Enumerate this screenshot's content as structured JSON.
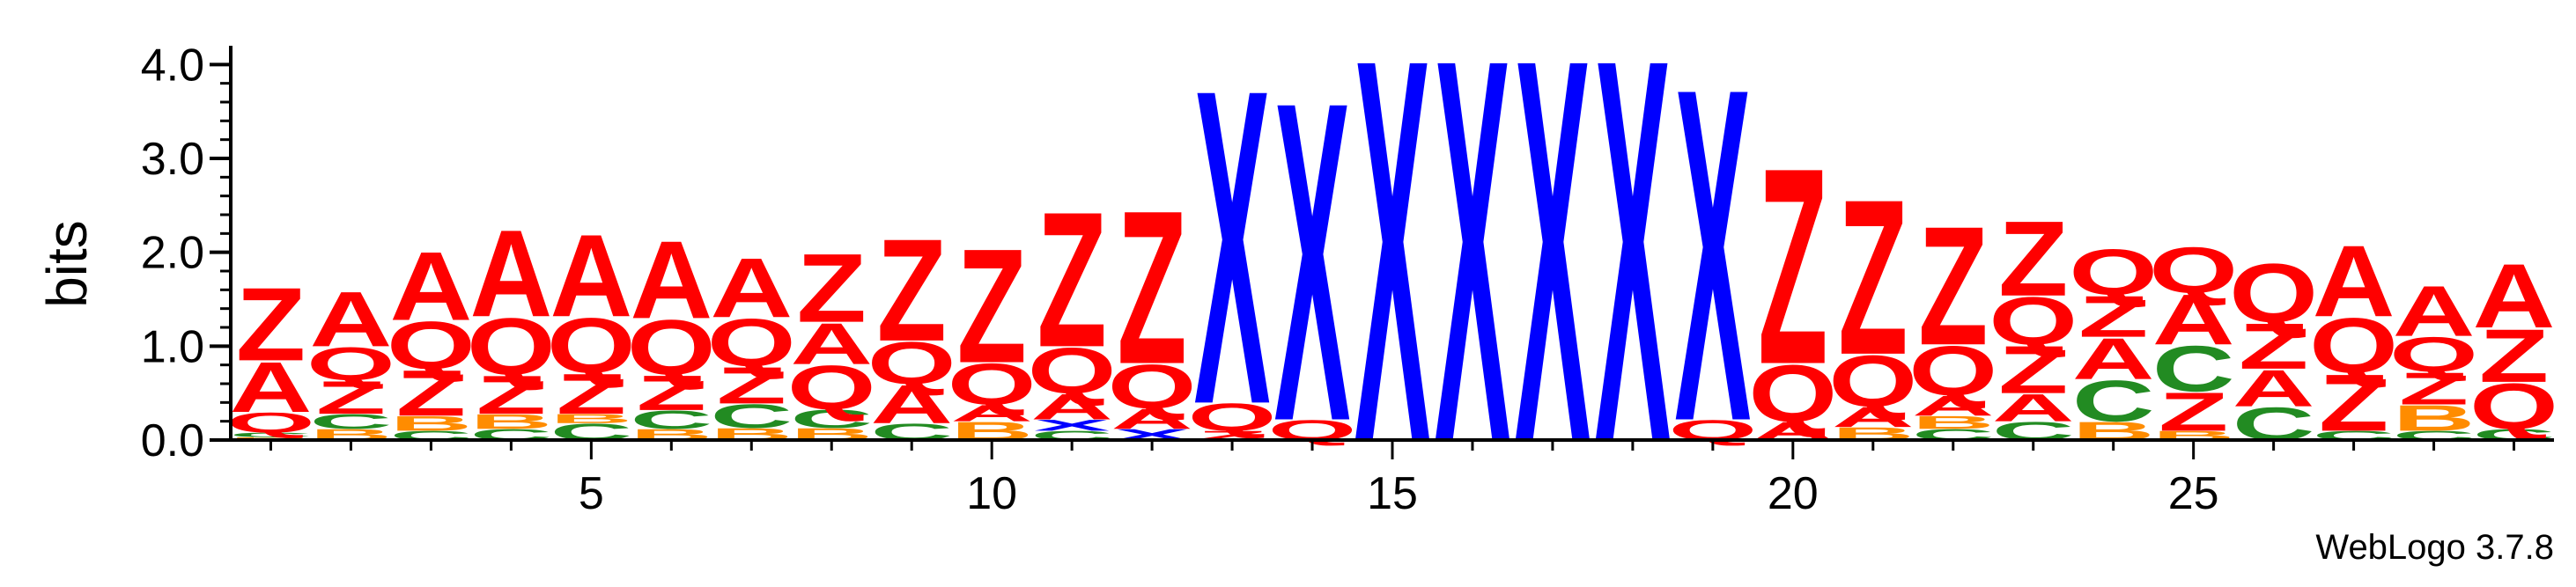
{
  "chart_data": {
    "type": "sequence-logo",
    "ylabel": "bits",
    "ylim": [
      0,
      4.2
    ],
    "yticks": [
      "0.0",
      "1.0",
      "2.0",
      "3.0",
      "4.0"
    ],
    "xticks": [
      "5",
      "10",
      "15",
      "20",
      "25"
    ],
    "xtick_positions": [
      5,
      10,
      15,
      20,
      25
    ],
    "positions": 29,
    "footer": "WebLogo 3.7.8",
    "colors": {
      "A": "#ff0000",
      "Q": "#ff0000",
      "Z": "#ff0000",
      "B": "#ff8c00",
      "C": "#228b22",
      "X": "#0000ff"
    },
    "columns": [
      [
        [
          "B",
          0.03
        ],
        [
          "C",
          0.05
        ],
        [
          "Q",
          0.22
        ],
        [
          "A",
          0.55
        ],
        [
          "Z",
          0.8
        ]
      ],
      [
        [
          "B",
          0.12
        ],
        [
          "C",
          0.16
        ],
        [
          "Z",
          0.36
        ],
        [
          "Q",
          0.36
        ],
        [
          "A",
          0.6
        ]
      ],
      [
        [
          "C",
          0.1
        ],
        [
          "B",
          0.16
        ],
        [
          "Z",
          0.5
        ],
        [
          "Q",
          0.52
        ],
        [
          "A",
          0.75
        ]
      ],
      [
        [
          "C",
          0.12
        ],
        [
          "B",
          0.16
        ],
        [
          "Z",
          0.42
        ],
        [
          "Q",
          0.62
        ],
        [
          "A",
          0.95
        ]
      ],
      [
        [
          "C",
          0.18
        ],
        [
          "B",
          0.1
        ],
        [
          "Z",
          0.44
        ],
        [
          "Q",
          0.6
        ],
        [
          "A",
          0.9
        ]
      ],
      [
        [
          "B",
          0.12
        ],
        [
          "C",
          0.2
        ],
        [
          "Z",
          0.38
        ],
        [
          "Q",
          0.6
        ],
        [
          "A",
          0.85
        ]
      ],
      [
        [
          "B",
          0.13
        ],
        [
          "C",
          0.26
        ],
        [
          "Z",
          0.4
        ],
        [
          "Q",
          0.52
        ],
        [
          "A",
          0.65
        ]
      ],
      [
        [
          "B",
          0.13
        ],
        [
          "C",
          0.2
        ],
        [
          "Q",
          0.48
        ],
        [
          "A",
          0.45
        ],
        [
          "Z",
          0.75
        ]
      ],
      [
        [
          "C",
          0.18
        ],
        [
          "A",
          0.42
        ],
        [
          "Q",
          0.46
        ],
        [
          "Z",
          1.12
        ]
      ],
      [
        [
          "B",
          0.2
        ],
        [
          "A",
          0.18
        ],
        [
          "Q",
          0.45
        ],
        [
          "Z",
          1.25
        ]
      ],
      [
        [
          "C",
          0.1
        ],
        [
          "X",
          0.12
        ],
        [
          "A",
          0.28
        ],
        [
          "Q",
          0.5
        ],
        [
          "Z",
          1.48
        ]
      ],
      [
        [
          "X",
          0.12
        ],
        [
          "A",
          0.22
        ],
        [
          "Q",
          0.48
        ],
        [
          "Z",
          1.68
        ]
      ],
      [
        [
          "Z",
          0.1
        ],
        [
          "Q",
          0.3
        ],
        [
          "X",
          3.45
        ]
      ],
      [
        [
          "Q",
          0.22
        ],
        [
          "X",
          3.5
        ]
      ],
      [
        [
          "X",
          4.2
        ]
      ],
      [
        [
          "X",
          4.2
        ]
      ],
      [
        [
          "X",
          4.2
        ]
      ],
      [
        [
          "X",
          4.2
        ]
      ],
      [
        [
          "Q",
          0.22
        ],
        [
          "X",
          3.65
        ]
      ],
      [
        [
          "A",
          0.2
        ],
        [
          "Q",
          0.62
        ],
        [
          "Z",
          2.15
        ]
      ],
      [
        [
          "B",
          0.14
        ],
        [
          "A",
          0.22
        ],
        [
          "Q",
          0.56
        ],
        [
          "Z",
          1.7
        ]
      ],
      [
        [
          "C",
          0.12
        ],
        [
          "B",
          0.14
        ],
        [
          "A",
          0.22
        ],
        [
          "Q",
          0.54
        ],
        [
          "Z",
          1.3
        ]
      ],
      [
        [
          "C",
          0.2
        ],
        [
          "A",
          0.3
        ],
        [
          "Z",
          0.52
        ],
        [
          "Q",
          0.52
        ],
        [
          "Z",
          0.82
        ]
      ],
      [
        [
          "B",
          0.2
        ],
        [
          "C",
          0.45
        ],
        [
          "A",
          0.45
        ],
        [
          "Z",
          0.45
        ],
        [
          "Q",
          0.5
        ]
      ],
      [
        [
          "B",
          0.1
        ],
        [
          "Z",
          0.42
        ],
        [
          "C",
          0.5
        ],
        [
          "A",
          0.55
        ],
        [
          "Q",
          0.5
        ]
      ],
      [
        [
          "C",
          0.36
        ],
        [
          "A",
          0.4
        ],
        [
          "Z",
          0.5
        ],
        [
          "Q",
          0.64
        ]
      ],
      [
        [
          "C",
          0.1
        ],
        [
          "Z",
          0.62
        ],
        [
          "Q",
          0.6
        ],
        [
          "A",
          0.78
        ]
      ],
      [
        [
          "C",
          0.1
        ],
        [
          "B",
          0.28
        ],
        [
          "Z",
          0.35
        ],
        [
          "Q",
          0.38
        ],
        [
          "A",
          0.55
        ]
      ],
      [
        [
          "C",
          0.12
        ],
        [
          "Q",
          0.5
        ],
        [
          "Z",
          0.58
        ],
        [
          "A",
          0.7
        ]
      ]
    ]
  }
}
